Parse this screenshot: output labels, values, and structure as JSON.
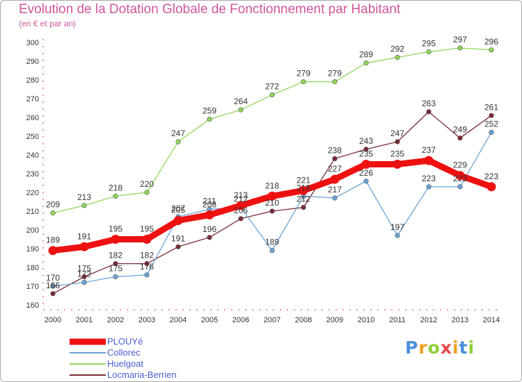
{
  "chart_data": {
    "type": "line",
    "title": "Evolution de la Dotation Globale de Fonctionnement par Habitant",
    "subtitle": "(en € et par an)",
    "xlabel": "",
    "ylabel": "",
    "x": [
      "2000",
      "2001",
      "2002",
      "2003",
      "2004",
      "2005",
      "2006",
      "2007",
      "2008",
      "2009",
      "2010",
      "2011",
      "2012",
      "2013",
      "2014"
    ],
    "ylim": [
      160,
      300
    ],
    "yticks": [
      160,
      170,
      180,
      190,
      200,
      210,
      220,
      230,
      240,
      250,
      260,
      270,
      280,
      290,
      300
    ],
    "grid": false,
    "legend_placement": "bottom-left",
    "series": [
      {
        "name": "Huelgoat",
        "color": "#8fd65a",
        "values": [
          209,
          213,
          218,
          220,
          247,
          259,
          264,
          272,
          279,
          279,
          289,
          292,
          295,
          297,
          296
        ]
      },
      {
        "name": "Locmaria-Berrien",
        "color": "#7a2a35",
        "values": [
          166,
          175,
          182,
          182,
          191,
          196,
          206,
          210,
          212,
          238,
          243,
          247,
          263,
          249,
          261
        ]
      },
      {
        "name": "Collorec",
        "color": "#6aa3d6",
        "values": [
          170,
          172,
          175,
          176,
          207,
          211,
          212,
          189,
          218,
          217,
          226,
          197,
          223,
          223,
          252
        ]
      },
      {
        "name": "PLOUYé",
        "color": "#ee1111",
        "values": [
          189,
          191,
          195,
          195,
          205,
          208,
          213,
          218,
          221,
          227,
          235,
          235,
          237,
          229,
          223
        ]
      }
    ],
    "legend_order": [
      "PLOUYé",
      "Collorec",
      "Huelgoat",
      "Locmaria-Berrien"
    ]
  },
  "brand": {
    "letters": [
      "P",
      "r",
      "o",
      "x",
      "i",
      "t",
      "i"
    ],
    "colors": [
      "#4a8fd8",
      "#f0a020",
      "#8fcf3a",
      "#e8484a",
      "#f0a020",
      "#4a8fd8",
      "#8fcf3a"
    ]
  }
}
